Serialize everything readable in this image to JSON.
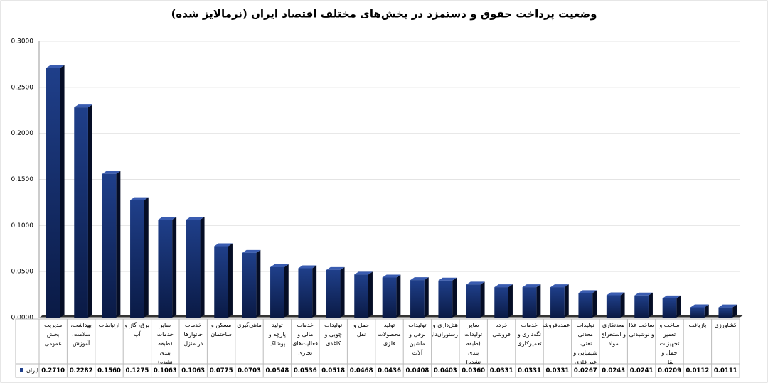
{
  "chart_data": {
    "type": "bar",
    "title": "وضعیت پرداخت حقوق و دستمزد در بخش‌های مختلف اقتصاد ایران (نرمالایز شده)",
    "categories": [
      "مدیریت بخش عمومی",
      "بهداشت، سلامت، آموزش",
      "ارتباطات",
      "برق، گاز و آب",
      "سایر خدمات (طبقه بندی نشده)",
      "خدمات خانوارها در منزل",
      "مسکن و ساختمان",
      "ماهی‌گیری",
      "تولید پارچه و پوشاک",
      "خدمات مالی و فعالیت‌های تجاری",
      "تولیدات چوبی و کاغذی",
      "حمل و نقل",
      "تولید محصولات فلزی",
      "تولیدات برقی و ماشین آلات",
      "هتل‌داری و رستوران‌داری",
      "سایر تولیدات (طبقه بندی نشده)",
      "خرده فروشی",
      "خدمات نگه‌داری و تعمیرکاری",
      "عمده‌فروشی",
      "تولیدات معدنی نفتی، شیمیایی و غیر فلزی",
      "معدنکاری و استخراج مواد",
      "ساخت غذا و نوشیدنی",
      "ساخت و تعمیر تجهیزات حمل و نقل",
      "بازیافت",
      "کشاورزی"
    ],
    "series": [
      {
        "name": "ایران",
        "color": "#1f3f8a",
        "values": [
          0.271,
          0.2282,
          0.156,
          0.1275,
          0.1063,
          0.1063,
          0.0775,
          0.0703,
          0.0548,
          0.0536,
          0.0518,
          0.0468,
          0.0436,
          0.0408,
          0.0403,
          0.036,
          0.0331,
          0.0331,
          0.0331,
          0.0267,
          0.0243,
          0.0241,
          0.0209,
          0.0112,
          0.0111
        ],
        "value_labels": [
          "0.2710",
          "0.2282",
          "0.1560",
          "0.1275",
          "0.1063",
          "0.1063",
          "0.0775",
          "0.0703",
          "0.0548",
          "0.0536",
          "0.0518",
          "0.0468",
          "0.0436",
          "0.0408",
          "0.0403",
          "0.0360",
          "0.0331",
          "0.0331",
          "0.0331",
          "0.0267",
          "0.0243",
          "0.0241",
          "0.0209",
          "0.0112",
          "0.0111"
        ]
      }
    ],
    "ylim": [
      0,
      0.3
    ],
    "yticks": [
      {
        "value": 0,
        "label": "0.0000"
      },
      {
        "value": 0.05,
        "label": "0.0500"
      },
      {
        "value": 0.1,
        "label": "0.1000"
      },
      {
        "value": 0.15,
        "label": "0.1500"
      },
      {
        "value": 0.2,
        "label": "0.2000"
      },
      {
        "value": 0.25,
        "label": "0.2500"
      },
      {
        "value": 0.3,
        "label": "0.3000"
      }
    ],
    "grid": true
  }
}
